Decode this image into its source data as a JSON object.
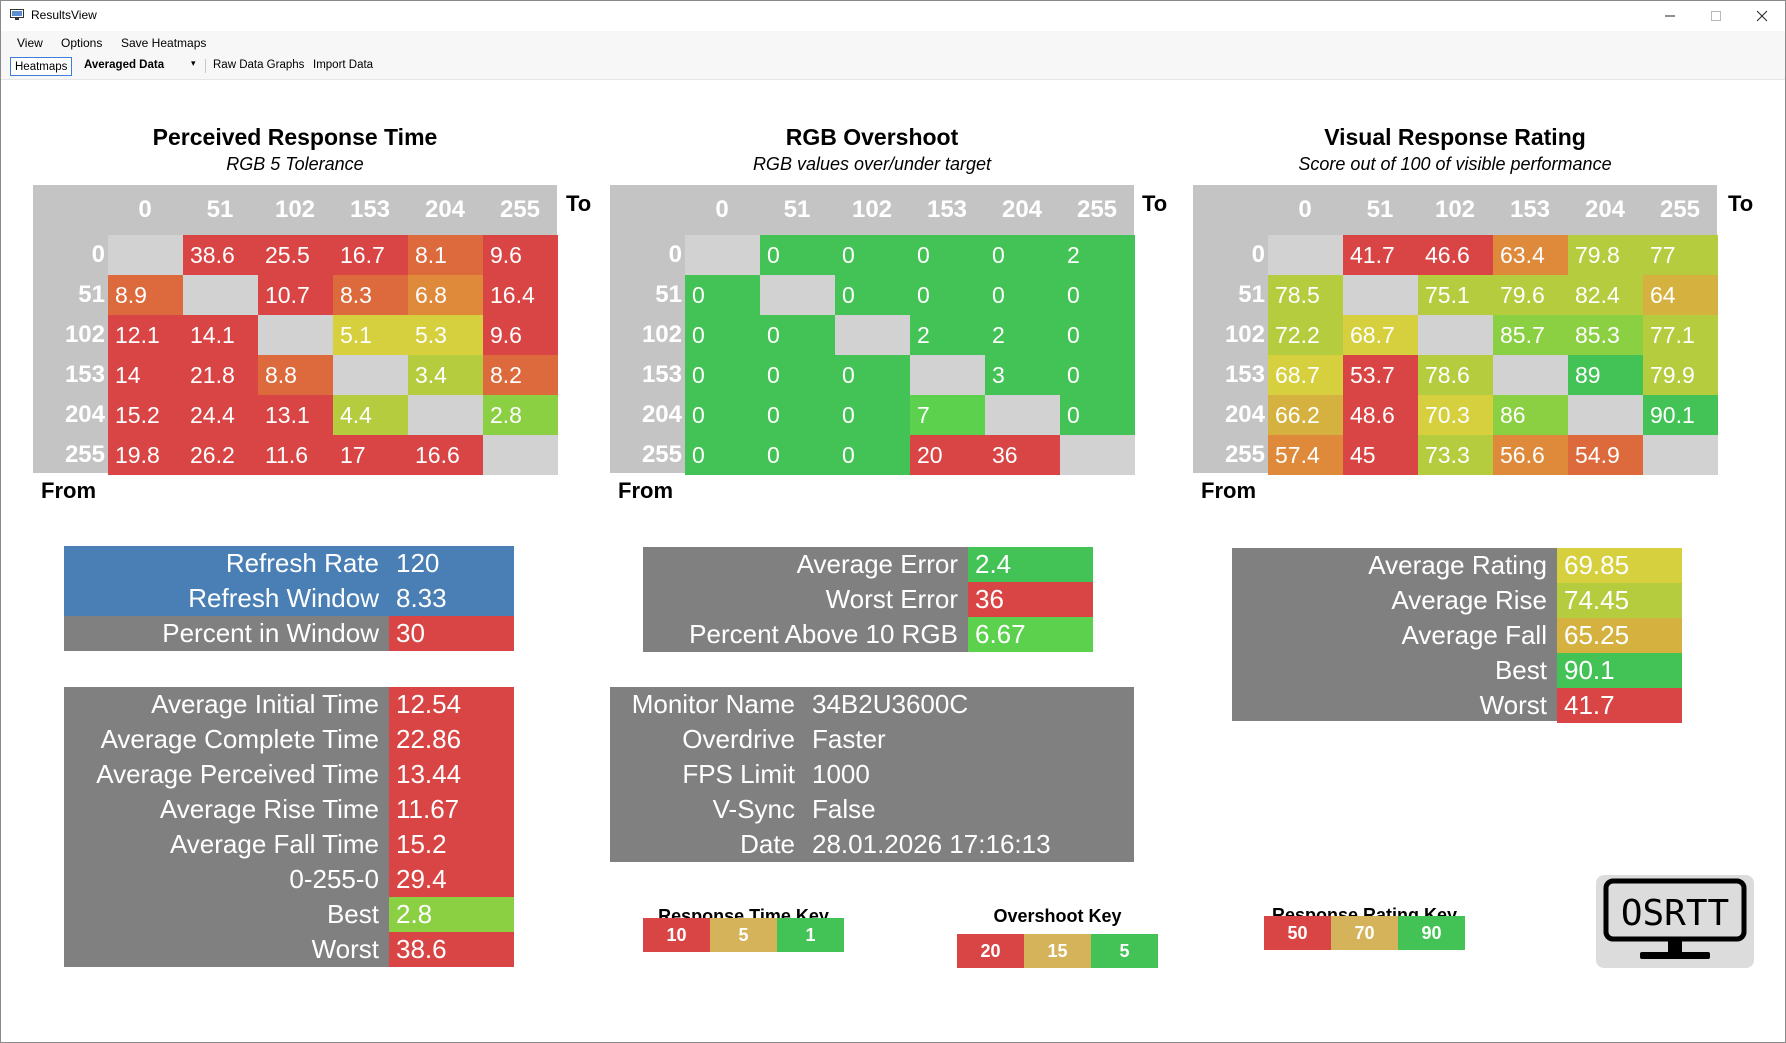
{
  "window": {
    "title": "ResultsView"
  },
  "menu": [
    "View",
    "Options",
    "Save Heatmaps"
  ],
  "toolbar": {
    "heatmaps": "Heatmaps",
    "data_mode": "Averaged Data",
    "raw_graphs": "Raw Data Graphs",
    "import": "Import Data"
  },
  "colors": {
    "red": "#d94545",
    "orange_red": "#dc6a3c",
    "orange": "#de8a3a",
    "amber": "#d5b23f",
    "yellow": "#d6cf3e",
    "yellow_green": "#b6cc3f",
    "light_green": "#8bd043",
    "green": "#43c256",
    "bright_green": "#5bd14d",
    "diag": "#d2d2d2",
    "blue": "#4a7fb5",
    "grey": "#808080",
    "key_amber": "#d4b35a"
  },
  "heatmaps": [
    {
      "id": "perceived-response-time",
      "title": "Perceived Response Time",
      "subtitle": "RGB 5 Tolerance",
      "to_label": "To",
      "from_label": "From",
      "columns": [
        "0",
        "51",
        "102",
        "153",
        "204",
        "255"
      ],
      "rows": [
        {
          "label": "0",
          "cells": [
            [
              "",
              "diag"
            ],
            [
              "38.6",
              "red"
            ],
            [
              "25.5",
              "red"
            ],
            [
              "16.7",
              "red"
            ],
            [
              "8.1",
              "orange_red"
            ],
            [
              "9.6",
              "red"
            ]
          ]
        },
        {
          "label": "51",
          "cells": [
            [
              "8.9",
              "orange_red"
            ],
            [
              "",
              "diag"
            ],
            [
              "10.7",
              "red"
            ],
            [
              "8.3",
              "orange_red"
            ],
            [
              "6.8",
              "orange"
            ],
            [
              "16.4",
              "red"
            ]
          ]
        },
        {
          "label": "102",
          "cells": [
            [
              "12.1",
              "red"
            ],
            [
              "14.1",
              "red"
            ],
            [
              "",
              "diag"
            ],
            [
              "5.1",
              "yellow"
            ],
            [
              "5.3",
              "yellow"
            ],
            [
              "9.6",
              "red"
            ]
          ]
        },
        {
          "label": "153",
          "cells": [
            [
              "14",
              "red"
            ],
            [
              "21.8",
              "red"
            ],
            [
              "8.8",
              "orange_red"
            ],
            [
              "",
              "diag"
            ],
            [
              "3.4",
              "yellow_green"
            ],
            [
              "8.2",
              "orange_red"
            ]
          ]
        },
        {
          "label": "204",
          "cells": [
            [
              "15.2",
              "red"
            ],
            [
              "24.4",
              "red"
            ],
            [
              "13.1",
              "red"
            ],
            [
              "4.4",
              "yellow_green"
            ],
            [
              "",
              "diag"
            ],
            [
              "2.8",
              "light_green"
            ]
          ]
        },
        {
          "label": "255",
          "cells": [
            [
              "19.8",
              "red"
            ],
            [
              "26.2",
              "red"
            ],
            [
              "11.6",
              "red"
            ],
            [
              "17",
              "red"
            ],
            [
              "16.6",
              "red"
            ],
            [
              "",
              "diag"
            ]
          ]
        }
      ]
    },
    {
      "id": "rgb-overshoot",
      "title": "RGB Overshoot",
      "subtitle": "RGB values over/under target",
      "to_label": "To",
      "from_label": "From",
      "columns": [
        "0",
        "51",
        "102",
        "153",
        "204",
        "255"
      ],
      "rows": [
        {
          "label": "0",
          "cells": [
            [
              "",
              "diag"
            ],
            [
              "0",
              "green"
            ],
            [
              "0",
              "green"
            ],
            [
              "0",
              "green"
            ],
            [
              "0",
              "green"
            ],
            [
              "2",
              "green"
            ]
          ]
        },
        {
          "label": "51",
          "cells": [
            [
              "0",
              "green"
            ],
            [
              "",
              "diag"
            ],
            [
              "0",
              "green"
            ],
            [
              "0",
              "green"
            ],
            [
              "0",
              "green"
            ],
            [
              "0",
              "green"
            ]
          ]
        },
        {
          "label": "102",
          "cells": [
            [
              "0",
              "green"
            ],
            [
              "0",
              "green"
            ],
            [
              "",
              "diag"
            ],
            [
              "2",
              "green"
            ],
            [
              "2",
              "green"
            ],
            [
              "0",
              "green"
            ]
          ]
        },
        {
          "label": "153",
          "cells": [
            [
              "0",
              "green"
            ],
            [
              "0",
              "green"
            ],
            [
              "0",
              "green"
            ],
            [
              "",
              "diag"
            ],
            [
              "3",
              "green"
            ],
            [
              "0",
              "green"
            ]
          ]
        },
        {
          "label": "204",
          "cells": [
            [
              "0",
              "green"
            ],
            [
              "0",
              "green"
            ],
            [
              "0",
              "green"
            ],
            [
              "7",
              "bright_green"
            ],
            [
              "",
              "diag"
            ],
            [
              "0",
              "green"
            ]
          ]
        },
        {
          "label": "255",
          "cells": [
            [
              "0",
              "green"
            ],
            [
              "0",
              "green"
            ],
            [
              "0",
              "green"
            ],
            [
              "20",
              "red"
            ],
            [
              "36",
              "red"
            ],
            [
              "",
              "diag"
            ]
          ]
        }
      ]
    },
    {
      "id": "visual-response-rating",
      "title": "Visual Response Rating",
      "subtitle": "Score out of 100 of visible performance",
      "to_label": "To",
      "from_label": "From",
      "columns": [
        "0",
        "51",
        "102",
        "153",
        "204",
        "255"
      ],
      "rows": [
        {
          "label": "0",
          "cells": [
            [
              "",
              "diag"
            ],
            [
              "41.7",
              "red"
            ],
            [
              "46.6",
              "red"
            ],
            [
              "63.4",
              "orange"
            ],
            [
              "79.8",
              "yellow_green"
            ],
            [
              "77",
              "yellow_green"
            ]
          ]
        },
        {
          "label": "51",
          "cells": [
            [
              "78.5",
              "yellow_green"
            ],
            [
              "",
              "diag"
            ],
            [
              "75.1",
              "yellow_green"
            ],
            [
              "79.6",
              "yellow_green"
            ],
            [
              "82.4",
              "yellow_green"
            ],
            [
              "64",
              "amber"
            ]
          ]
        },
        {
          "label": "102",
          "cells": [
            [
              "72.2",
              "yellow_green"
            ],
            [
              "68.7",
              "yellow"
            ],
            [
              "",
              "diag"
            ],
            [
              "85.7",
              "light_green"
            ],
            [
              "85.3",
              "light_green"
            ],
            [
              "77.1",
              "yellow_green"
            ]
          ]
        },
        {
          "label": "153",
          "cells": [
            [
              "68.7",
              "yellow"
            ],
            [
              "53.7",
              "red"
            ],
            [
              "78.6",
              "yellow_green"
            ],
            [
              "",
              "diag"
            ],
            [
              "89",
              "green"
            ],
            [
              "79.9",
              "yellow_green"
            ]
          ]
        },
        {
          "label": "204",
          "cells": [
            [
              "66.2",
              "amber"
            ],
            [
              "48.6",
              "red"
            ],
            [
              "70.3",
              "yellow"
            ],
            [
              "86",
              "light_green"
            ],
            [
              "",
              "diag"
            ],
            [
              "90.1",
              "green"
            ]
          ]
        },
        {
          "label": "255",
          "cells": [
            [
              "57.4",
              "orange"
            ],
            [
              "45",
              "red"
            ],
            [
              "73.3",
              "yellow_green"
            ],
            [
              "56.6",
              "orange"
            ],
            [
              "54.9",
              "orange_red"
            ],
            [
              "",
              "diag"
            ]
          ]
        }
      ]
    }
  ],
  "refresh_panel": [
    {
      "label": "Refresh Rate",
      "value": "120",
      "row_color": "blue",
      "value_color": "blue"
    },
    {
      "label": "Refresh Window",
      "value": "8.33",
      "row_color": "blue",
      "value_color": "blue"
    },
    {
      "label": "Percent in Window",
      "value": "30",
      "row_color": "grey",
      "value_color": "red"
    }
  ],
  "overshoot_panel": [
    {
      "label": "Average Error",
      "value": "2.4",
      "value_color": "green"
    },
    {
      "label": "Worst Error",
      "value": "36",
      "value_color": "red"
    },
    {
      "label": "Percent Above 10 RGB",
      "value": "6.67",
      "value_color": "bright_green"
    }
  ],
  "rating_panel": [
    {
      "label": "Average Rating",
      "value": "69.85",
      "value_color": "yellow"
    },
    {
      "label": "Average Rise",
      "value": "74.45",
      "value_color": "yellow_green"
    },
    {
      "label": "Average Fall",
      "value": "65.25",
      "value_color": "amber"
    },
    {
      "label": "Best",
      "value": "90.1",
      "value_color": "green"
    },
    {
      "label": "Worst",
      "value": "41.7",
      "value_color": "red"
    }
  ],
  "time_panel": [
    {
      "label": "Average Initial Time",
      "value": "12.54",
      "value_color": "red"
    },
    {
      "label": "Average Complete Time",
      "value": "22.86",
      "value_color": "red"
    },
    {
      "label": "Average Perceived Time",
      "value": "13.44",
      "value_color": "red"
    },
    {
      "label": "Average Rise Time",
      "value": "11.67",
      "value_color": "red"
    },
    {
      "label": "Average Fall Time",
      "value": "15.2",
      "value_color": "red"
    },
    {
      "label": "0-255-0",
      "value": "29.4",
      "value_color": "red"
    },
    {
      "label": "Best",
      "value": "2.8",
      "value_color": "light_green"
    },
    {
      "label": "Worst",
      "value": "38.6",
      "value_color": "red"
    }
  ],
  "monitor_panel": [
    {
      "label": "Monitor Name",
      "value": "34B2U3600C"
    },
    {
      "label": "Overdrive",
      "value": "Faster"
    },
    {
      "label": "FPS Limit",
      "value": "1000"
    },
    {
      "label": "V-Sync",
      "value": "False"
    },
    {
      "label": "Date",
      "value": "28.01.2026 17:16:13"
    }
  ],
  "keys": [
    {
      "id": "response-time-key",
      "title": "Response Time Key",
      "items": [
        [
          "10",
          "red"
        ],
        [
          "5",
          "key_amber"
        ],
        [
          "1",
          "green"
        ]
      ]
    },
    {
      "id": "overshoot-key",
      "title": "Overshoot Key",
      "items": [
        [
          "20",
          "red"
        ],
        [
          "15",
          "key_amber"
        ],
        [
          "5",
          "green"
        ]
      ]
    },
    {
      "id": "response-rating-key",
      "title": "Response Rating Key",
      "items": [
        [
          "50",
          "red"
        ],
        [
          "70",
          "key_amber"
        ],
        [
          "90",
          "green"
        ]
      ]
    }
  ],
  "logo": {
    "text": "OSRTT",
    "icon": "monitor-logo-icon"
  }
}
